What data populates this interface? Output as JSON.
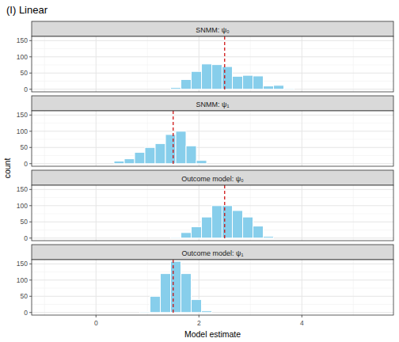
{
  "chart_data": {
    "type": "histogram",
    "title": "(I) Linear",
    "x_label": "Model estimate",
    "y_label": "count",
    "xlim": [
      -1.25,
      5.78
    ],
    "xticks": [
      0,
      2,
      4
    ],
    "ylim": [
      -8,
      163
    ],
    "yticks": [
      0,
      50,
      100,
      150
    ],
    "grid": true,
    "color": "#87ceeb",
    "panels": [
      {
        "title": "SNMM: ψ₀",
        "bins": [
          1.45,
          1.65,
          1.85,
          2.05,
          2.25,
          2.45,
          2.65,
          2.85,
          3.05,
          3.25,
          3.45,
          3.65,
          3.85
        ],
        "values": [
          5,
          30,
          55,
          78,
          76,
          70,
          40,
          43,
          41,
          10,
          12,
          3
        ],
        "reference_line": 2.5
      },
      {
        "title": "SNMM: ψ₁",
        "bins": [
          0.35,
          0.55,
          0.75,
          0.95,
          1.15,
          1.35,
          1.55,
          1.75,
          1.95,
          2.15
        ],
        "values": [
          8,
          15,
          35,
          50,
          62,
          90,
          100,
          55,
          10
        ],
        "reference_line": 1.5
      },
      {
        "title": "Outcome model: ψ₀",
        "bins": [
          1.45,
          1.65,
          1.85,
          2.05,
          2.25,
          2.45,
          2.65,
          2.85,
          3.05,
          3.25,
          3.45
        ],
        "values": [
          3,
          17,
          35,
          65,
          100,
          100,
          85,
          65,
          37,
          5
        ],
        "reference_line": 2.5
      },
      {
        "title": "Outcome model: ψ₁",
        "bins": [
          0.85,
          1.05,
          1.25,
          1.45,
          1.65,
          1.85,
          2.05,
          2.25
        ],
        "values": [
          3,
          50,
          120,
          158,
          120,
          40,
          5
        ],
        "reference_line": 1.5
      }
    ]
  }
}
